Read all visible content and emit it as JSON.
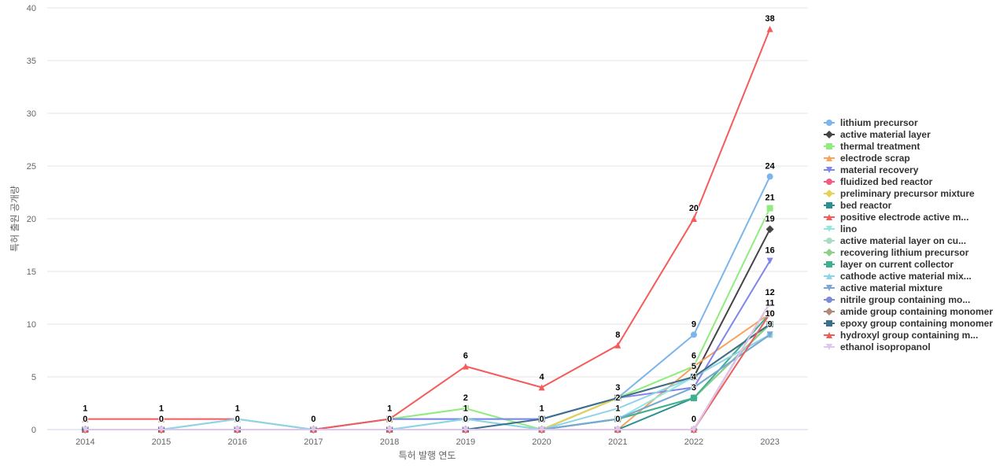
{
  "chart_data": {
    "type": "line",
    "x_label": "특허 발행 연도",
    "y_label": "특허 출원 공개량",
    "categories": [
      "2014",
      "2015",
      "2016",
      "2017",
      "2018",
      "2019",
      "2020",
      "2021",
      "2022",
      "2023"
    ],
    "ylim": [
      0,
      40
    ],
    "yticks": [
      0,
      5,
      10,
      15,
      20,
      25,
      30,
      35,
      40
    ],
    "grid": true,
    "series": [
      {
        "name": "lithium precursor",
        "color": "#7cb5ec",
        "values": [
          0,
          0,
          0,
          0,
          1,
          1,
          1,
          3,
          9,
          24
        ]
      },
      {
        "name": "active material layer",
        "color": "#434348",
        "values": [
          0,
          0,
          0,
          0,
          0,
          0,
          0,
          3,
          5,
          19
        ]
      },
      {
        "name": "thermal treatment",
        "color": "#90ed7d",
        "values": [
          0,
          0,
          0,
          0,
          1,
          2,
          0,
          3,
          6,
          21
        ]
      },
      {
        "name": "electrode scrap",
        "color": "#f7a35c",
        "values": [
          0,
          0,
          0,
          0,
          0,
          0,
          0,
          0,
          6,
          11
        ]
      },
      {
        "name": "material recovery",
        "color": "#8085e9",
        "values": [
          0,
          0,
          0,
          0,
          1,
          1,
          1,
          3,
          4,
          16
        ]
      },
      {
        "name": "fluidized bed reactor",
        "color": "#f15c80",
        "values": [
          0,
          0,
          0,
          0,
          0,
          0,
          0,
          0,
          0,
          12
        ]
      },
      {
        "name": "preliminary precursor mixture",
        "color": "#e4d354",
        "values": [
          0,
          0,
          0,
          0,
          0,
          0,
          0,
          3,
          5,
          10
        ]
      },
      {
        "name": "bed reactor",
        "color": "#2b908f",
        "values": [
          0,
          0,
          0,
          0,
          0,
          0,
          0,
          0,
          3,
          10
        ]
      },
      {
        "name": "positive electrode active m...",
        "color": "#f45b5b",
        "values": [
          1,
          1,
          1,
          0,
          1,
          6,
          4,
          8,
          20,
          38
        ]
      },
      {
        "name": "lino",
        "color": "#91e8e1",
        "values": [
          0,
          0,
          1,
          0,
          0,
          1,
          0,
          1,
          5,
          9
        ]
      },
      {
        "name": "active material layer on cu...",
        "color": "#a9dcc4",
        "values": [
          0,
          0,
          1,
          0,
          0,
          1,
          0,
          1,
          4,
          9
        ]
      },
      {
        "name": "recovering lithium precursor",
        "color": "#8fcf8a",
        "values": [
          0,
          0,
          0,
          0,
          0,
          0,
          0,
          1,
          3,
          10
        ]
      },
      {
        "name": "layer on current collector",
        "color": "#3fb08f",
        "values": [
          0,
          0,
          0,
          0,
          0,
          0,
          0,
          1,
          3,
          11
        ]
      },
      {
        "name": "cathode active material mix...",
        "color": "#8fd3e8",
        "values": [
          0,
          0,
          1,
          0,
          0,
          1,
          0,
          2,
          5,
          9
        ]
      },
      {
        "name": "active material mixture",
        "color": "#7aa6d6",
        "values": [
          0,
          0,
          0,
          0,
          0,
          0,
          0,
          1,
          4,
          9
        ]
      },
      {
        "name": "nitrile group containing mo...",
        "color": "#7c8bd4",
        "values": [
          0,
          0,
          0,
          0,
          0,
          0,
          0,
          0,
          0,
          12
        ]
      },
      {
        "name": "amide group containing monomer",
        "color": "#b0897a",
        "values": [
          0,
          0,
          0,
          0,
          0,
          0,
          0,
          0,
          0,
          12
        ]
      },
      {
        "name": "epoxy group containing monomer",
        "color": "#3d6f8c",
        "values": [
          0,
          0,
          0,
          0,
          0,
          0,
          1,
          3,
          5,
          10
        ]
      },
      {
        "name": "hydroxyl group containing m...",
        "color": "#e8605b",
        "values": [
          0,
          0,
          0,
          0,
          0,
          0,
          0,
          0,
          0,
          11
        ]
      },
      {
        "name": "ethanol isopropanol",
        "color": "#e0c6ef",
        "values": [
          0,
          0,
          0,
          0,
          0,
          0,
          0,
          0,
          0,
          12
        ]
      }
    ]
  }
}
